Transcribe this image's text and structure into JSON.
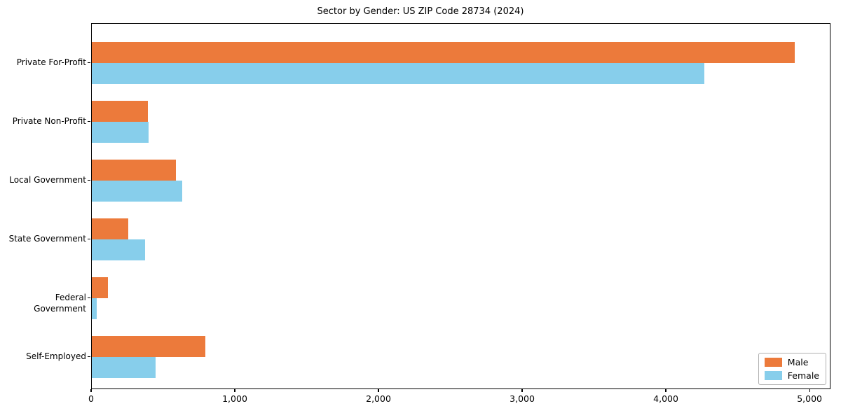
{
  "title": "Sector by Gender: US ZIP Code 28734 (2024)",
  "chart_data": {
    "type": "bar",
    "orientation": "horizontal",
    "title": "Sector by Gender: US ZIP Code 28734 (2024)",
    "categories": [
      "Private For-Profit",
      "Private Non-Profit",
      "Local Government",
      "State Government",
      "Federal Government",
      "Self-Employed"
    ],
    "series": [
      {
        "name": "Male",
        "color": "#ec7a3b",
        "values": [
          4890,
          390,
          585,
          255,
          110,
          790
        ]
      },
      {
        "name": "Female",
        "color": "#87ceeb",
        "values": [
          4265,
          395,
          630,
          370,
          35,
          445
        ]
      }
    ],
    "xlabel": "",
    "ylabel": "",
    "xlim": [
      0,
      5136
    ],
    "x_ticks": [
      0,
      1000,
      2000,
      3000,
      4000,
      5000
    ],
    "x_tick_labels": [
      "0",
      "1,000",
      "2,000",
      "3,000",
      "4,000",
      "5,000"
    ],
    "grid": false,
    "legend": {
      "position": "lower right",
      "entries": [
        {
          "label": "Male",
          "color": "#ec7a3b"
        },
        {
          "label": "Female",
          "color": "#87ceeb"
        }
      ]
    }
  }
}
